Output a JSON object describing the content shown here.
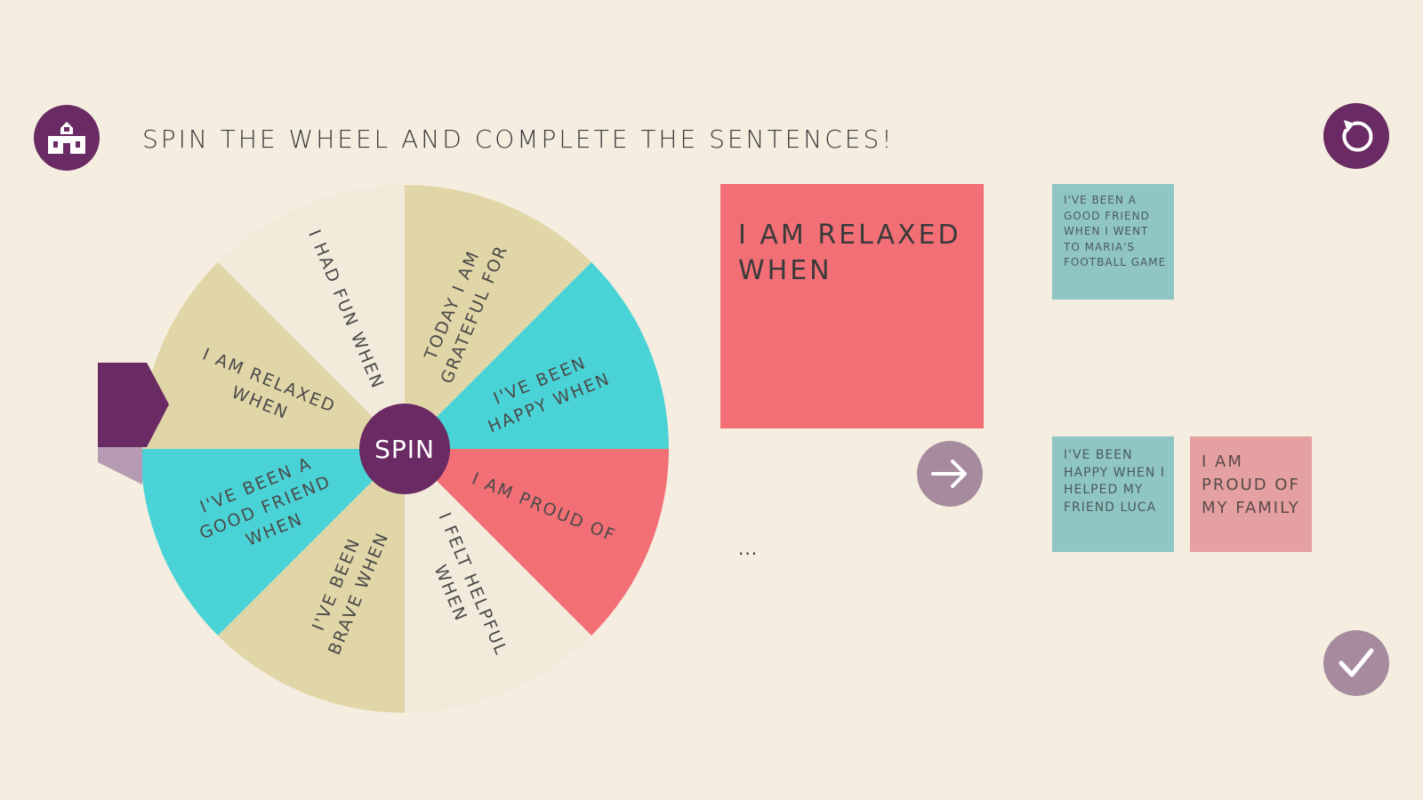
{
  "header": {
    "instruction": "SPIN THE WHEEL AND COMPLETE THE SENTENCES!",
    "home_icon": "school-house-icon",
    "restart_icon": "restart-icon"
  },
  "wheel": {
    "spin_label": "SPIN",
    "pointer_icon": "pointer-arrow-icon",
    "segments": [
      {
        "label": "TODAY I AM GRATEFUL FOR",
        "color": "#e0d6a7"
      },
      {
        "label": "I'VE BEEN HAPPY WHEN",
        "color": "#4ad3d6"
      },
      {
        "label": "I AM PROUD OF",
        "color": "#f36f76"
      },
      {
        "label": "I FELT HELPFUL WHEN",
        "color": "#f2ebdb"
      },
      {
        "label": "I'VE BEEN BRAVE WHEN",
        "color": "#e0d6a7"
      },
      {
        "label": "I'VE BEEN A GOOD FRIEND WHEN",
        "color": "#4ad3d6"
      },
      {
        "label": "I AM RELAXED WHEN",
        "color": "#e0d6a7"
      },
      {
        "label": "I HAD FUN WHEN",
        "color": "#f2ebdb"
      }
    ]
  },
  "prompt_card": {
    "text": "I AM RELAXED WHEN",
    "ellipsis": "...",
    "color": "#f36f76"
  },
  "next_icon": "arrow-right-icon",
  "check_icon": "checkmark-icon",
  "answer_cards": [
    {
      "text": "I'VE BEEN A GOOD FRIEND WHEN I WENT TO MARIA'S FOOTBALL GAME",
      "color": "#8fc6c4"
    },
    {
      "text": "I'VE BEEN HAPPY WHEN I HELPED MY FRIEND LUCA",
      "color": "#8fc6c4"
    },
    {
      "text": "I AM PROUD OF MY FAMILY",
      "color": "#e5a0a1"
    }
  ],
  "colors": {
    "background": "#f5eee0",
    "accent_purple": "#6a2a63",
    "muted_purple": "#a68b9f",
    "pointer_shadow": "#b79ab3"
  }
}
